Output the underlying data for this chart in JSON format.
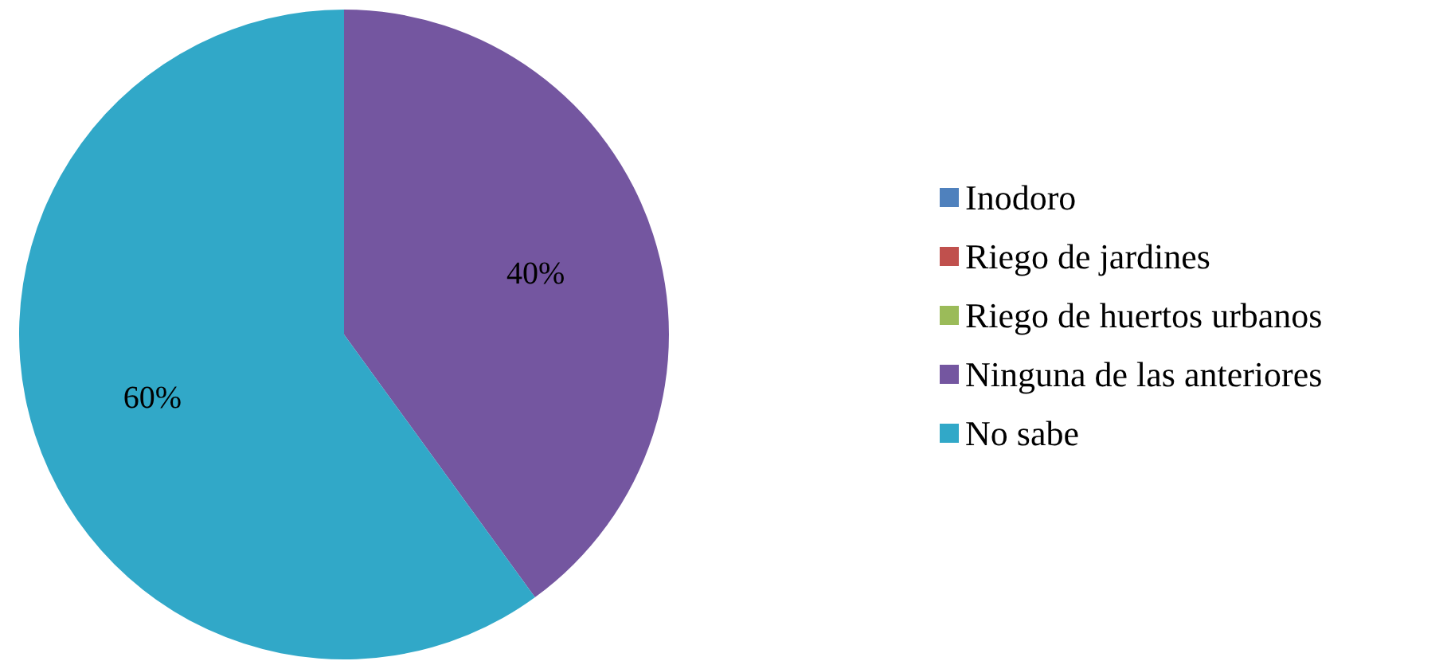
{
  "chart_data": {
    "type": "pie",
    "categories": [
      "Inodoro",
      "Riego de jardines",
      "Riego de huertos urbanos",
      "Ninguna de las anteriores",
      "No sabe"
    ],
    "values": [
      0,
      0,
      0,
      40,
      60
    ],
    "colors": [
      "#4f81bd",
      "#c0504d",
      "#9bbb59",
      "#7456a0",
      "#31a8c8"
    ],
    "value_labels": [
      null,
      null,
      null,
      "40%",
      "60%"
    ],
    "legend": "right"
  }
}
